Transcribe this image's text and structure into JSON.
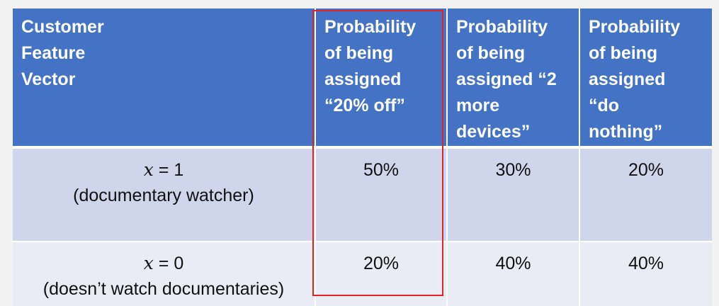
{
  "table": {
    "headers": [
      "Customer\nFeature\nVector",
      "Probability\nof being\nassigned\n“20% off”",
      "Probability\nof being\nassigned “2\nmore\ndevices”",
      "Probability\nof being\nassigned\n“do\nnothing”"
    ],
    "rows": [
      {
        "x_symbol": "x",
        "x_value": " = 1",
        "description": "(documentary watcher)",
        "values": [
          "50%",
          "30%",
          "20%"
        ]
      },
      {
        "x_symbol": "x",
        "x_value": " = 0",
        "description": "(doesn’t watch documentaries)",
        "values": [
          "20%",
          "40%",
          "40%"
        ]
      }
    ]
  },
  "colors": {
    "header_bg": "#4472c4",
    "row_dark": "#cfd5ea",
    "row_light": "#e9ebf5",
    "highlight_border": "#e02424"
  }
}
